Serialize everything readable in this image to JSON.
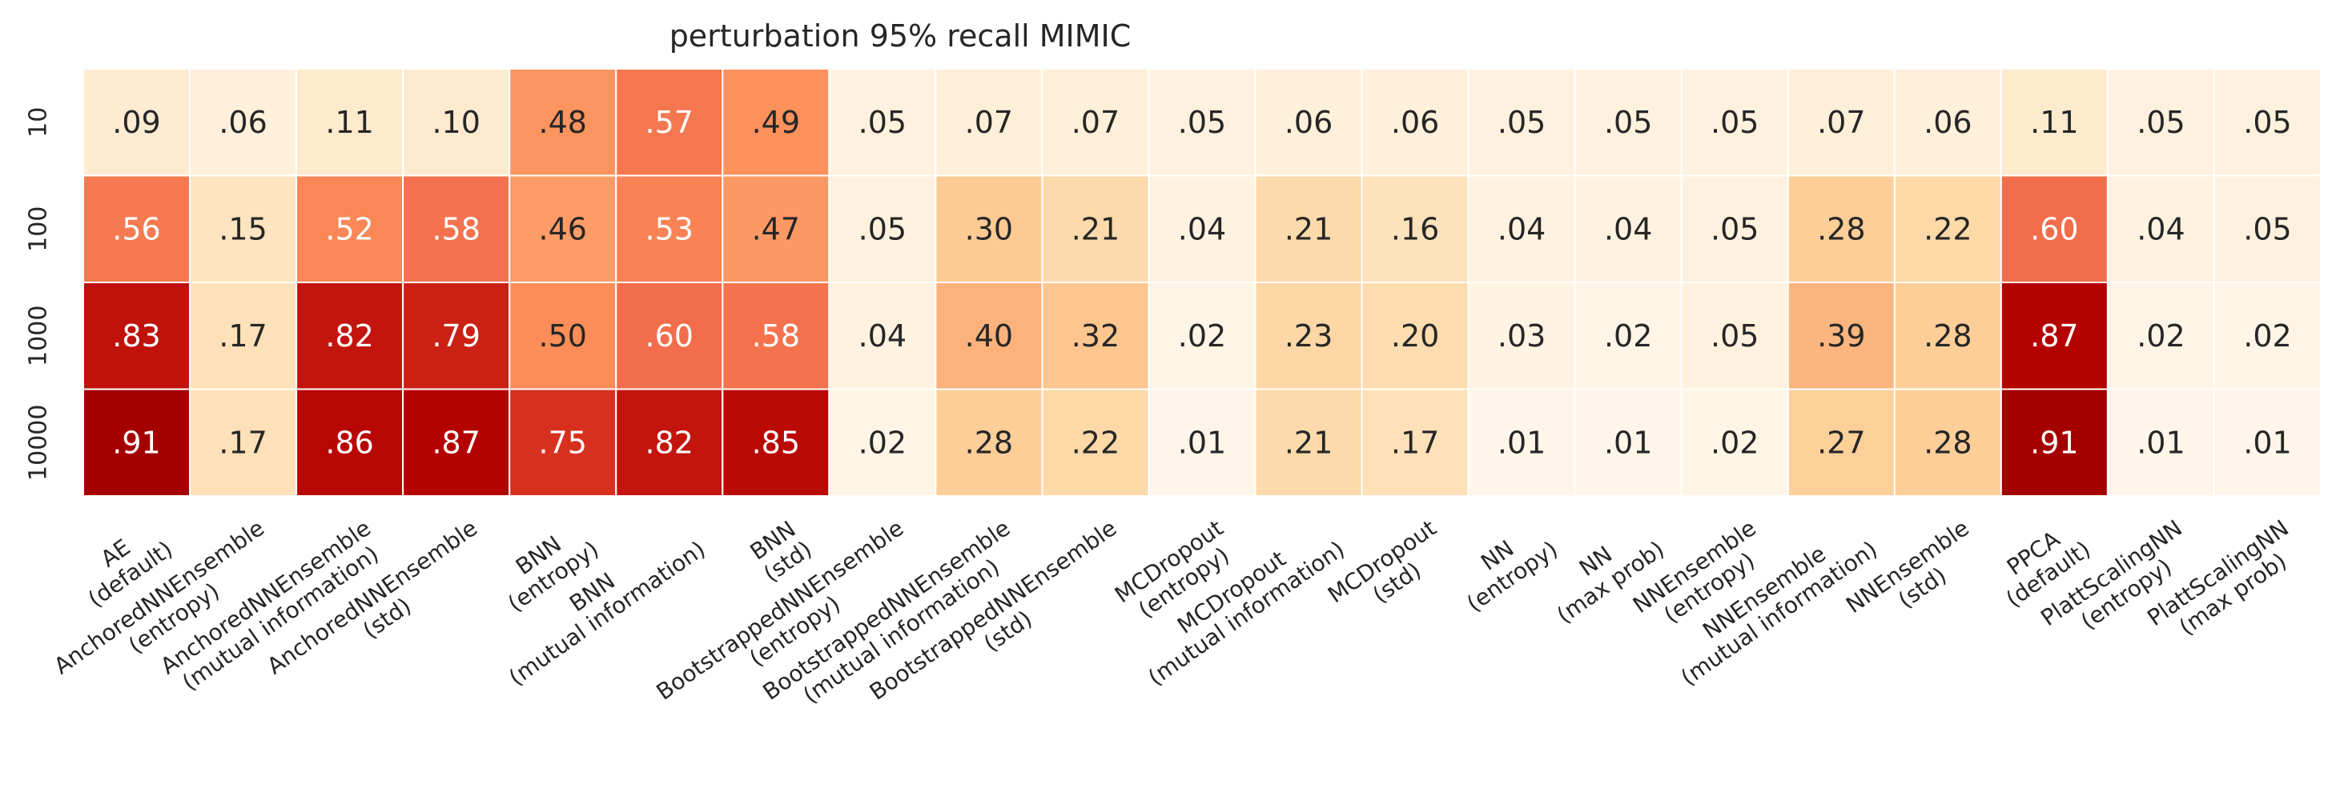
{
  "chart_data": {
    "type": "heatmap",
    "title": "perturbation 95% recall MIMIC",
    "xlabel": "",
    "ylabel": "",
    "rows": [
      "10",
      "100",
      "1000",
      "10000"
    ],
    "columns": [
      [
        "AE",
        "(default)"
      ],
      [
        "AnchoredNNEnsemble",
        "(entropy)"
      ],
      [
        "AnchoredNNEnsemble",
        "(mutual information)"
      ],
      [
        "AnchoredNNEnsemble",
        "(std)"
      ],
      [
        "BNN",
        "(entropy)"
      ],
      [
        "BNN",
        "(mutual information)"
      ],
      [
        "BNN",
        "(std)"
      ],
      [
        "BootstrappedNNEnsemble",
        "(entropy)"
      ],
      [
        "BootstrappedNNEnsemble",
        "(mutual information)"
      ],
      [
        "BootstrappedNNEnsemble",
        "(std)"
      ],
      [
        "MCDropout",
        "(entropy)"
      ],
      [
        "MCDropout",
        "(mutual information)"
      ],
      [
        "MCDropout",
        "(std)"
      ],
      [
        "NN",
        "(entropy)"
      ],
      [
        "NN",
        "(max prob)"
      ],
      [
        "NNEnsemble",
        "(entropy)"
      ],
      [
        "NNEnsemble",
        "(mutual information)"
      ],
      [
        "NNEnsemble",
        "(std)"
      ],
      [
        "PPCA",
        "(default)"
      ],
      [
        "PlattScalingNN",
        "(entropy)"
      ],
      [
        "PlattScalingNN",
        "(max prob)"
      ]
    ],
    "values": [
      [
        0.09,
        0.06,
        0.11,
        0.1,
        0.48,
        0.57,
        0.49,
        0.05,
        0.07,
        0.07,
        0.05,
        0.06,
        0.06,
        0.05,
        0.05,
        0.05,
        0.07,
        0.06,
        0.11,
        0.05,
        0.05
      ],
      [
        0.56,
        0.15,
        0.52,
        0.58,
        0.46,
        0.53,
        0.47,
        0.05,
        0.3,
        0.21,
        0.04,
        0.21,
        0.16,
        0.04,
        0.04,
        0.05,
        0.28,
        0.22,
        0.6,
        0.04,
        0.05
      ],
      [
        0.83,
        0.17,
        0.82,
        0.79,
        0.5,
        0.6,
        0.58,
        0.04,
        0.4,
        0.32,
        0.02,
        0.23,
        0.2,
        0.03,
        0.02,
        0.05,
        0.39,
        0.28,
        0.87,
        0.02,
        0.02
      ],
      [
        0.91,
        0.17,
        0.86,
        0.87,
        0.75,
        0.82,
        0.85,
        0.02,
        0.28,
        0.22,
        0.01,
        0.21,
        0.17,
        0.01,
        0.01,
        0.02,
        0.27,
        0.28,
        0.91,
        0.01,
        0.01
      ]
    ],
    "cell_labels": [
      [
        ".09",
        ".06",
        ".11",
        ".10",
        ".48",
        ".57",
        ".49",
        ".05",
        ".07",
        ".07",
        ".05",
        ".06",
        ".06",
        ".05",
        ".05",
        ".05",
        ".07",
        ".06",
        ".11",
        ".05",
        ".05"
      ],
      [
        ".56",
        ".15",
        ".52",
        ".58",
        ".46",
        ".53",
        ".47",
        ".05",
        ".30",
        ".21",
        ".04",
        ".21",
        ".16",
        ".04",
        ".04",
        ".05",
        ".28",
        ".22",
        ".60",
        ".04",
        ".05"
      ],
      [
        ".83",
        ".17",
        ".82",
        ".79",
        ".50",
        ".60",
        ".58",
        ".04",
        ".40",
        ".32",
        ".02",
        ".23",
        ".20",
        ".03",
        ".02",
        ".05",
        ".39",
        ".28",
        ".87",
        ".02",
        ".02"
      ],
      [
        ".91",
        ".17",
        ".86",
        ".87",
        ".75",
        ".82",
        ".85",
        ".02",
        ".28",
        ".22",
        ".01",
        ".21",
        ".17",
        ".01",
        ".01",
        ".02",
        ".27",
        ".28",
        ".91",
        ".01",
        ".01"
      ]
    ],
    "colormap": "OrRd",
    "color_range": [
      0,
      1
    ],
    "colorbar": false,
    "grid": false
  }
}
